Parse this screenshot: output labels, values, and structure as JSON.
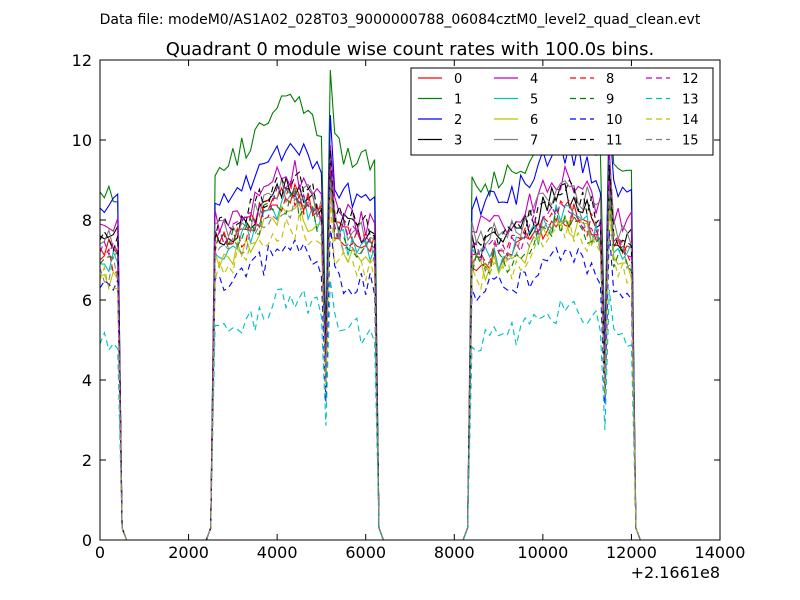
{
  "figure": {
    "suptitle": "Data file: modeM0/AS1A02_028T03_9000000788_06084cztM0_level2_quad_clean.evt",
    "offset_label": "+2.1661e8"
  },
  "chart_data": {
    "type": "line",
    "title": "Quadrant 0 module wise count rates with 100.0s bins.",
    "xlabel": "",
    "ylabel": "",
    "xlim": [
      0,
      14000
    ],
    "ylim": [
      0,
      12
    ],
    "x_offset": 216610000,
    "xticks": [
      0,
      2000,
      4000,
      6000,
      8000,
      10000,
      12000,
      14000
    ],
    "xtick_labels": [
      "0",
      "2000",
      "4000",
      "6000",
      "8000",
      "10000",
      "12000",
      "14000"
    ],
    "yticks": [
      0,
      2,
      4,
      6,
      8,
      10,
      12
    ],
    "ytick_labels": [
      "0",
      "2",
      "4",
      "6",
      "8",
      "10",
      "12"
    ],
    "grid": false,
    "legend_position": "top-right",
    "legend_columns": 4,
    "segments": [
      {
        "start": 0,
        "end": 500,
        "peak_center": null,
        "dip_center": null
      },
      {
        "start": 2500,
        "end": 6300,
        "peak_center": 4300,
        "dip_center": 5100
      },
      {
        "start": 8300,
        "end": 12100,
        "peak_center": 10500,
        "dip_center": 11400
      }
    ],
    "gap_level": 0.0,
    "series": [
      {
        "name": "0",
        "color": "#ff0000",
        "dash": "solid",
        "levels": [
          7.3,
          7.5,
          7.0
        ]
      },
      {
        "name": "1",
        "color": "#008000",
        "dash": "solid",
        "levels": [
          8.7,
          9.4,
          8.9
        ]
      },
      {
        "name": "2",
        "color": "#0000ff",
        "dash": "solid",
        "levels": [
          8.3,
          8.5,
          8.4
        ]
      },
      {
        "name": "3",
        "color": "#000000",
        "dash": "solid",
        "levels": [
          7.6,
          7.6,
          7.4
        ]
      },
      {
        "name": "4",
        "color": "#bf00bf",
        "dash": "solid",
        "levels": [
          7.9,
          7.9,
          7.8
        ]
      },
      {
        "name": "5",
        "color": "#00bfbf",
        "dash": "solid",
        "levels": [
          6.9,
          7.3,
          7.0
        ]
      },
      {
        "name": "6",
        "color": "#bfbf00",
        "dash": "solid",
        "levels": [
          6.6,
          7.1,
          6.8
        ]
      },
      {
        "name": "7",
        "color": "#808080",
        "dash": "solid",
        "levels": [
          7.4,
          7.6,
          7.6
        ]
      },
      {
        "name": "8",
        "color": "#ff0000",
        "dash": "dashed",
        "levels": [
          7.0,
          7.4,
          7.1
        ]
      },
      {
        "name": "9",
        "color": "#008000",
        "dash": "dashed",
        "levels": [
          6.9,
          7.3,
          6.9
        ]
      },
      {
        "name": "10",
        "color": "#0000ff",
        "dash": "dashed",
        "levels": [
          6.3,
          6.3,
          6.2
        ]
      },
      {
        "name": "11",
        "color": "#000000",
        "dash": "dashed",
        "levels": [
          7.5,
          7.8,
          7.5
        ]
      },
      {
        "name": "12",
        "color": "#bf00bf",
        "dash": "dashed",
        "levels": [
          7.2,
          7.5,
          7.2
        ]
      },
      {
        "name": "13",
        "color": "#00bfbf",
        "dash": "dashed",
        "levels": [
          4.9,
          5.2,
          5.0
        ]
      },
      {
        "name": "14",
        "color": "#bfbf00",
        "dash": "dashed",
        "levels": [
          6.5,
          6.8,
          6.6
        ]
      },
      {
        "name": "15",
        "color": "#808080",
        "dash": "dashed",
        "levels": [
          6.8,
          7.2,
          7.0
        ]
      }
    ]
  }
}
